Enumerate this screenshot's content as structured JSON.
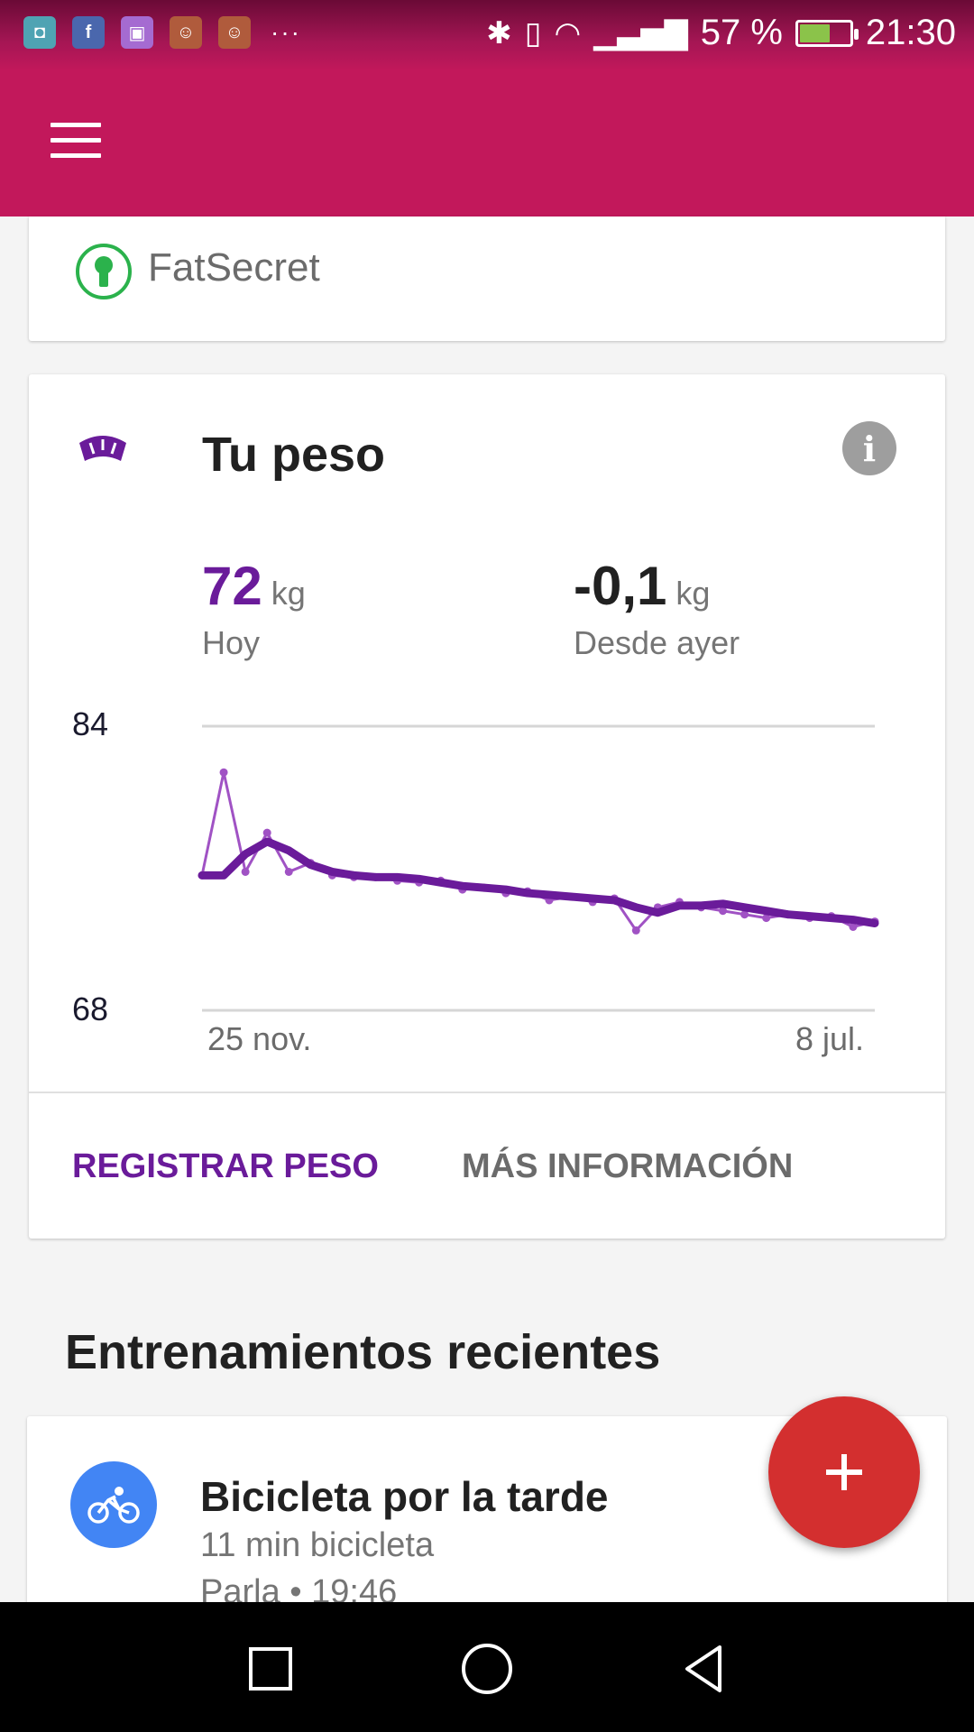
{
  "status_bar": {
    "notification_icons": [
      "android-icon",
      "facebook-icon",
      "gallery-icon",
      "game-icon",
      "game-icon"
    ],
    "more": "···",
    "battery_text": "57 %",
    "battery_level": 0.57,
    "time": "21:30"
  },
  "app_bar": {
    "menu_icon": "hamburger-menu-icon"
  },
  "fatsecret_card": {
    "app_name": "FatSecret"
  },
  "weight_card": {
    "title": "Tu peso",
    "today": {
      "value": "72",
      "unit": "kg",
      "label": "Hoy"
    },
    "change": {
      "value": "-0,1",
      "unit": "kg",
      "label": "Desde ayer"
    },
    "actions": {
      "register": "REGISTRAR PESO",
      "more_info": "MÁS INFORMACIÓN"
    }
  },
  "chart_data": {
    "type": "line",
    "ylim": [
      68,
      84
    ],
    "y_ticks": [
      "84",
      "68"
    ],
    "x_ticks": [
      "25 nov.",
      "8 jul."
    ],
    "series": [
      {
        "values": [
          75.6,
          75.6,
          76.8,
          77.5,
          77.0,
          76.2,
          75.8,
          75.6,
          75.5,
          75.5,
          75.4,
          75.2,
          75.0,
          74.9,
          74.8,
          74.6,
          74.5,
          74.4,
          74.3,
          74.2,
          73.8,
          73.5,
          73.9,
          73.9,
          74.0,
          73.8,
          73.6,
          73.4,
          73.3,
          73.2,
          73.1,
          72.9
        ]
      },
      {
        "values": [
          75.6,
          81.4,
          75.8,
          78.0,
          75.8,
          76.3,
          75.6,
          75.5,
          75.5,
          75.3,
          75.2,
          75.3,
          74.8,
          74.9,
          74.6,
          74.7,
          74.2,
          74.4,
          74.1,
          74.3,
          72.5,
          73.8,
          74.1,
          73.8,
          73.6,
          73.4,
          73.2,
          73.4,
          73.2,
          73.3,
          72.7,
          73.0
        ]
      }
    ]
  },
  "section": {
    "title": "Entrenamientos recientes"
  },
  "workout": {
    "title": "Bicicleta por la tarde",
    "subtitle": "11 min bicicleta",
    "meta": "Parla • 19:46"
  },
  "fab": {
    "label": "+"
  }
}
